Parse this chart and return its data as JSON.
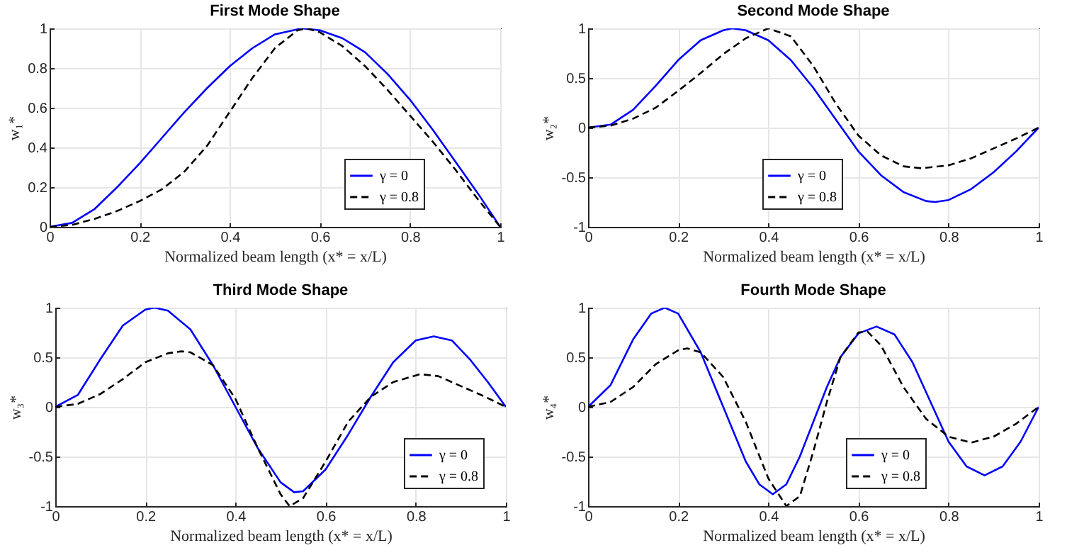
{
  "chart_data": [
    {
      "type": "line",
      "title": "First Mode Shape",
      "xlabel": "Normalized beam length (x* = x/L)",
      "ylabel": "w₁*",
      "xlim": [
        0,
        1
      ],
      "ylim": [
        0,
        1
      ],
      "xticks": [
        0,
        0.2,
        0.4,
        0.6,
        0.8,
        1
      ],
      "yticks": [
        0,
        0.2,
        0.4,
        0.6,
        0.8,
        1
      ],
      "grid": true,
      "legend": "bottom right",
      "series": [
        {
          "name": "γ = 0",
          "color": "#0000ff",
          "line_style": "solid",
          "x": [
            0,
            0.05,
            0.1,
            0.15,
            0.2,
            0.25,
            0.3,
            0.35,
            0.4,
            0.45,
            0.5,
            0.56,
            0.6,
            0.65,
            0.7,
            0.75,
            0.8,
            0.85,
            0.9,
            0.95,
            1
          ],
          "values": [
            0,
            0.02,
            0.09,
            0.2,
            0.32,
            0.45,
            0.58,
            0.7,
            0.81,
            0.9,
            0.97,
            1.0,
            0.99,
            0.95,
            0.88,
            0.77,
            0.64,
            0.49,
            0.33,
            0.17,
            0
          ]
        },
        {
          "name": "γ = 0.8",
          "color": "#000000",
          "line_style": "dashed",
          "x": [
            0,
            0.05,
            0.1,
            0.15,
            0.2,
            0.25,
            0.3,
            0.35,
            0.4,
            0.45,
            0.5,
            0.55,
            0.57,
            0.6,
            0.65,
            0.7,
            0.75,
            0.8,
            0.85,
            0.9,
            0.95,
            1
          ],
          "values": [
            0,
            0.01,
            0.04,
            0.08,
            0.13,
            0.19,
            0.28,
            0.41,
            0.58,
            0.75,
            0.9,
            0.99,
            1.0,
            0.98,
            0.91,
            0.81,
            0.69,
            0.56,
            0.43,
            0.29,
            0.14,
            0
          ]
        }
      ]
    },
    {
      "type": "line",
      "title": "Second Mode Shape",
      "xlabel": "Normalized beam length (x* = x/L)",
      "ylabel": "w₂*",
      "xlim": [
        0,
        1
      ],
      "ylim": [
        -1,
        1
      ],
      "xticks": [
        0,
        0.2,
        0.4,
        0.6,
        0.8,
        1
      ],
      "yticks": [
        -1,
        -0.5,
        0,
        0.5,
        1
      ],
      "grid": true,
      "legend": "bottom",
      "series": [
        {
          "name": "γ = 0",
          "color": "#0000ff",
          "line_style": "solid",
          "x": [
            0,
            0.05,
            0.1,
            0.15,
            0.2,
            0.25,
            0.3,
            0.32,
            0.35,
            0.4,
            0.45,
            0.5,
            0.55,
            0.6,
            0.65,
            0.7,
            0.75,
            0.77,
            0.8,
            0.85,
            0.9,
            0.95,
            1
          ],
          "values": [
            0,
            0.03,
            0.18,
            0.42,
            0.68,
            0.88,
            0.98,
            1.0,
            0.98,
            0.88,
            0.68,
            0.4,
            0.08,
            -0.24,
            -0.48,
            -0.65,
            -0.74,
            -0.75,
            -0.73,
            -0.62,
            -0.45,
            -0.24,
            0
          ]
        },
        {
          "name": "γ = 0.8",
          "color": "#000000",
          "line_style": "dashed",
          "x": [
            0,
            0.05,
            0.1,
            0.15,
            0.2,
            0.25,
            0.3,
            0.35,
            0.4,
            0.45,
            0.5,
            0.55,
            0.6,
            0.65,
            0.7,
            0.74,
            0.8,
            0.85,
            0.9,
            0.95,
            1
          ],
          "values": [
            0,
            0.02,
            0.09,
            0.2,
            0.37,
            0.55,
            0.74,
            0.9,
            1.0,
            0.92,
            0.62,
            0.24,
            -0.08,
            -0.28,
            -0.39,
            -0.41,
            -0.38,
            -0.31,
            -0.21,
            -0.11,
            0
          ]
        }
      ]
    },
    {
      "type": "line",
      "title": "Third Mode Shape",
      "xlabel": "Normalized beam length (x* = x/L)",
      "ylabel": "w₃*",
      "xlim": [
        0,
        1
      ],
      "ylim": [
        -1,
        1
      ],
      "xticks": [
        0,
        0.2,
        0.4,
        0.6,
        0.8,
        1
      ],
      "yticks": [
        -1,
        -0.5,
        0,
        0.5,
        1
      ],
      "grid": true,
      "legend": "bottom right",
      "series": [
        {
          "name": "γ = 0",
          "color": "#0000ff",
          "line_style": "solid",
          "x": [
            0,
            0.05,
            0.1,
            0.15,
            0.2,
            0.22,
            0.25,
            0.3,
            0.35,
            0.4,
            0.45,
            0.5,
            0.53,
            0.55,
            0.6,
            0.65,
            0.7,
            0.75,
            0.8,
            0.84,
            0.88,
            0.92,
            0.96,
            1
          ],
          "values": [
            0,
            0.12,
            0.48,
            0.82,
            0.98,
            1.0,
            0.97,
            0.78,
            0.42,
            0.0,
            -0.42,
            -0.76,
            -0.86,
            -0.85,
            -0.63,
            -0.28,
            0.1,
            0.45,
            0.67,
            0.71,
            0.67,
            0.48,
            0.25,
            0
          ]
        },
        {
          "name": "γ = 0.8",
          "color": "#000000",
          "line_style": "dashed",
          "x": [
            0,
            0.05,
            0.1,
            0.15,
            0.2,
            0.25,
            0.28,
            0.3,
            0.35,
            0.4,
            0.45,
            0.5,
            0.52,
            0.55,
            0.6,
            0.65,
            0.7,
            0.75,
            0.81,
            0.85,
            0.9,
            0.95,
            1
          ],
          "values": [
            0,
            0.03,
            0.13,
            0.28,
            0.45,
            0.54,
            0.56,
            0.55,
            0.42,
            0.08,
            -0.42,
            -0.88,
            -1.0,
            -0.92,
            -0.55,
            -0.15,
            0.1,
            0.25,
            0.33,
            0.31,
            0.21,
            0.11,
            0
          ]
        }
      ]
    },
    {
      "type": "line",
      "title": "Fourth Mode Shape",
      "xlabel": "Normalized beam length (x* = x/L)",
      "ylabel": "w₄*",
      "xlim": [
        0,
        1
      ],
      "ylim": [
        -1,
        1
      ],
      "xticks": [
        0,
        0.2,
        0.4,
        0.6,
        0.8,
        1
      ],
      "yticks": [
        -1,
        -0.5,
        0,
        0.5,
        1
      ],
      "grid": true,
      "legend": "bottom right",
      "series": [
        {
          "name": "γ = 0",
          "color": "#0000ff",
          "line_style": "solid",
          "x": [
            0,
            0.05,
            0.1,
            0.14,
            0.17,
            0.2,
            0.25,
            0.3,
            0.35,
            0.38,
            0.41,
            0.44,
            0.47,
            0.5,
            0.53,
            0.56,
            0.6,
            0.64,
            0.68,
            0.72,
            0.76,
            0.8,
            0.84,
            0.88,
            0.92,
            0.96,
            1
          ],
          "values": [
            0,
            0.22,
            0.68,
            0.94,
            1.0,
            0.94,
            0.55,
            0.0,
            -0.55,
            -0.78,
            -0.88,
            -0.78,
            -0.5,
            -0.15,
            0.2,
            0.5,
            0.74,
            0.81,
            0.73,
            0.45,
            0.05,
            -0.35,
            -0.6,
            -0.69,
            -0.6,
            -0.35,
            0
          ]
        },
        {
          "name": "γ = 0.8",
          "color": "#000000",
          "line_style": "dashed",
          "x": [
            0,
            0.05,
            0.1,
            0.15,
            0.2,
            0.22,
            0.25,
            0.3,
            0.35,
            0.4,
            0.44,
            0.47,
            0.5,
            0.53,
            0.56,
            0.6,
            0.62,
            0.65,
            0.7,
            0.75,
            0.8,
            0.85,
            0.9,
            0.95,
            1
          ],
          "values": [
            0,
            0.05,
            0.2,
            0.43,
            0.57,
            0.59,
            0.55,
            0.3,
            -0.15,
            -0.72,
            -1.0,
            -0.9,
            -0.45,
            0.05,
            0.5,
            0.75,
            0.76,
            0.62,
            0.2,
            -0.12,
            -0.3,
            -0.36,
            -0.3,
            -0.17,
            0
          ]
        }
      ]
    }
  ]
}
